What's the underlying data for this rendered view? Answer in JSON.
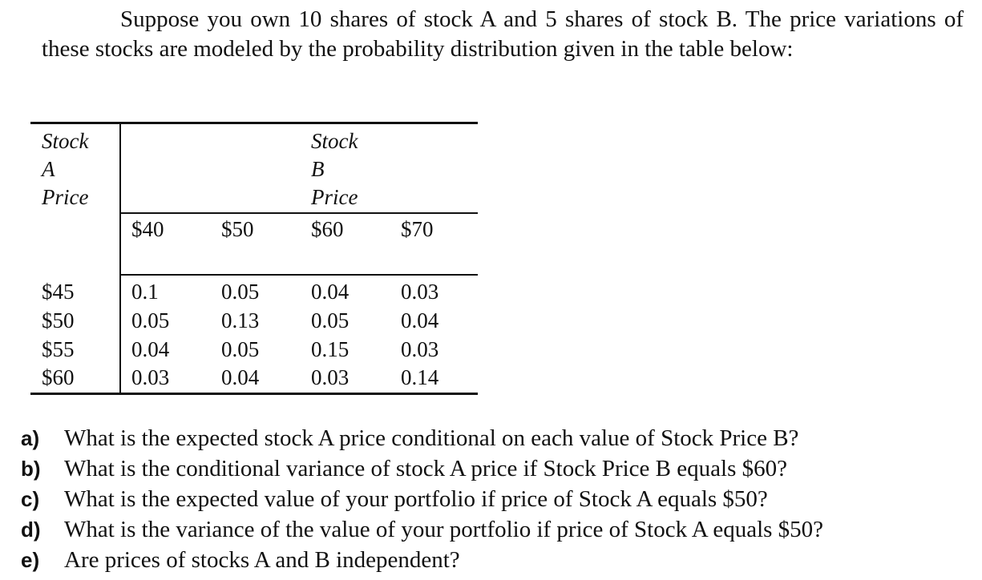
{
  "intro": "Suppose you own 10 shares of stock A and 5 shares of stock B. The price variations of these stocks are modeled by the probability distribution given in the table below:",
  "table": {
    "row_header": [
      "Stock",
      "A",
      "Price"
    ],
    "col_header": [
      "Stock",
      "B",
      "Price"
    ],
    "columns": [
      "$40",
      "$50",
      "$60",
      "$70"
    ],
    "rows": [
      {
        "label": "$45",
        "values": [
          "0.1",
          "0.05",
          "0.04",
          "0.03"
        ]
      },
      {
        "label": "$50",
        "values": [
          "0.05",
          "0.13",
          "0.05",
          "0.04"
        ]
      },
      {
        "label": "$55",
        "values": [
          "0.04",
          "0.05",
          "0.15",
          "0.03"
        ]
      },
      {
        "label": "$60",
        "values": [
          "0.03",
          "0.04",
          "0.03",
          "0.14"
        ]
      }
    ]
  },
  "questions": [
    {
      "letter": "a)",
      "text": "What is the expected stock A price conditional on each value of Stock Price B?"
    },
    {
      "letter": "b)",
      "text": "What is the conditional variance of stock A price if Stock Price B equals $60?"
    },
    {
      "letter": "c)",
      "text": "What is the expected value of your portfolio if price of Stock A equals $50?"
    },
    {
      "letter": "d)",
      "text": "What is the variance of the value of your portfolio if price of Stock A equals $50?"
    },
    {
      "letter": "e)",
      "text": "Are prices of stocks A and B independent?"
    }
  ]
}
